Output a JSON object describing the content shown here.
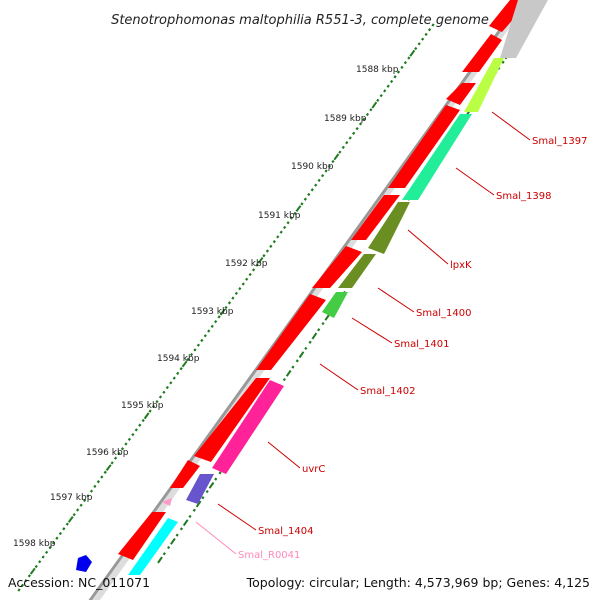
{
  "title": "Stenotrophomonas maltophilia R551-3, complete genome",
  "footer": {
    "accession": "Accession: NC_011071",
    "topology": "Topology: circular; Length: 4,573,969 bp; Genes: 4,125"
  },
  "ticks": [
    "1588 kbp",
    "1589 kbp",
    "1590 kbp",
    "1591 kbp",
    "1592 kbp",
    "1593 kbp",
    "1594 kbp",
    "1595 kbp",
    "1596 kbp",
    "1597 kbp",
    "1598 kbp"
  ],
  "genes": [
    {
      "label": "Smal_1397",
      "color": "#bbff44",
      "label_color": "#cc0000"
    },
    {
      "label": "Smal_1398",
      "color": "#22ee99",
      "label_color": "#cc0000"
    },
    {
      "label": "lpxK",
      "color": "#6b8e23",
      "label_color": "#cc0000"
    },
    {
      "label": "Smal_1400",
      "color": "#6b8e23",
      "label_color": "#cc0000"
    },
    {
      "label": "Smal_1401",
      "color": "#44cc44",
      "label_color": "#cc0000"
    },
    {
      "label": "Smal_1402",
      "color": "#ff2299",
      "label_color": "#cc0000"
    },
    {
      "label": "uvrC",
      "color": "#ff2299",
      "label_color": "#cc0000"
    },
    {
      "label": "Smal_1404",
      "color": "#6655cc",
      "label_color": "#cc0000"
    },
    {
      "label": "Smal_R0041",
      "color": "#ff99cc",
      "label_color": "#ff88bb"
    }
  ],
  "colors": {
    "forward_cds": "#ff0000",
    "backbone": "#999999",
    "tick_green": "#1f7a1f",
    "grey_feature": "#c8c8c8",
    "cyan_feature": "#00ffff",
    "blue_feature": "#0000ee"
  }
}
